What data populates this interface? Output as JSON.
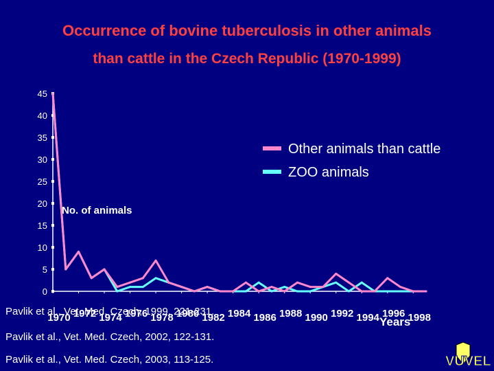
{
  "title_line1": "Occurrence of bovine tuberculosis in other animals",
  "title_line2": "than cattle in the Czech Republic (1970-1999)",
  "references": [
    "Pavlik et al., Vet. Med. Czech, 1999, 221-231.",
    "Pavlik et al., Vet. Med. Czech, 2002, 122-131.",
    "Pavlik et al., Vet. Med. Czech, 2003, 113-125."
  ],
  "logo_text": "VUVEL",
  "colors": {
    "background": "#000080",
    "title": "#ff4040",
    "other_animals": "#ff88cc",
    "zoo_animals": "#66ffff",
    "axis": "#ffffff"
  },
  "chart_data": {
    "type": "line",
    "ylabel": "No. of animals",
    "xlabel": "Years",
    "ylim": [
      0,
      45
    ],
    "yticks": [
      0,
      5,
      10,
      15,
      20,
      25,
      30,
      35,
      40,
      45
    ],
    "x": [
      1970,
      1971,
      1972,
      1973,
      1974,
      1975,
      1976,
      1977,
      1978,
      1979,
      1980,
      1981,
      1982,
      1983,
      1984,
      1985,
      1986,
      1987,
      1988,
      1989,
      1990,
      1991,
      1992,
      1993,
      1994,
      1995,
      1996,
      1997,
      1998,
      1999
    ],
    "xticks": [
      1970,
      1972,
      1974,
      1976,
      1978,
      1980,
      1982,
      1984,
      1986,
      1988,
      1990,
      1992,
      1994,
      1996,
      1998
    ],
    "legend_position": "right",
    "grid": false,
    "series": [
      {
        "name": "Other animals than cattle",
        "color": "#ff88cc",
        "values": [
          45,
          5,
          9,
          3,
          5,
          1,
          2,
          3,
          7,
          2,
          1,
          0,
          1,
          0,
          0,
          2,
          0,
          1,
          0,
          2,
          1,
          1,
          4,
          2,
          0,
          0,
          3,
          1,
          0,
          0
        ]
      },
      {
        "name": "ZOO animals",
        "color": "#66ffff",
        "values": [
          45,
          5,
          9,
          3,
          5,
          0,
          1,
          1,
          3,
          2,
          1,
          0,
          1,
          0,
          0,
          0,
          2,
          0,
          1,
          0,
          0,
          1,
          2,
          0,
          2,
          0,
          0,
          0,
          0,
          0
        ]
      }
    ]
  }
}
